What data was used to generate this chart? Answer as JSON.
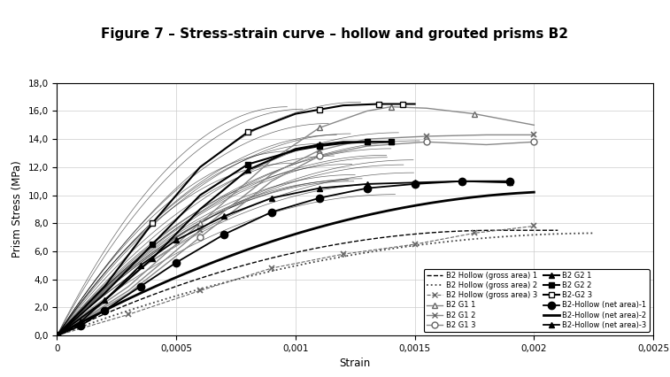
{
  "title": "Figure 7 – Stress-strain curve – hollow and grouted prisms B2",
  "title_bg_color": "#E8A020",
  "xlabel": "Strain",
  "ylabel": "Prism Stress (MPa)",
  "xlim": [
    0,
    0.0025
  ],
  "ylim": [
    0,
    18.0
  ],
  "yticks": [
    0.0,
    2.0,
    4.0,
    6.0,
    8.0,
    10.0,
    12.0,
    14.0,
    16.0,
    18.0
  ],
  "xticks": [
    0,
    0.0005,
    0.001,
    0.0015,
    0.002,
    0.0025
  ],
  "xtick_labels": [
    "0",
    "0,0005",
    "0,001",
    "0,0015",
    "0,002",
    "0,0025"
  ],
  "ytick_labels": [
    "0,0",
    "2,0",
    "4,0",
    "6,0",
    "8,0",
    "10,0",
    "12,0",
    "14,0",
    "16,0",
    "18,0"
  ],
  "fig_bg": "#FFFFFF",
  "plot_bg": "#FFFFFF"
}
